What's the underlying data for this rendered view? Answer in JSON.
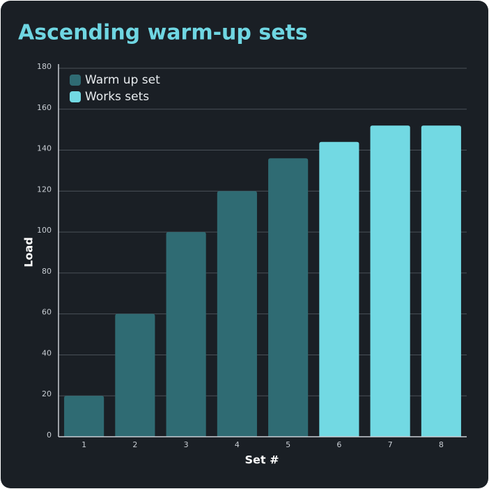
{
  "chart_data": {
    "type": "bar",
    "title": "Ascending warm-up sets",
    "x_label": "Set #",
    "y_label": "Load",
    "categories": [
      "1",
      "2",
      "3",
      "4",
      "5",
      "6",
      "7",
      "8"
    ],
    "series": [
      {
        "name": "Warm up set",
        "color": "#2f6b73",
        "values": [
          20,
          60,
          100,
          120,
          136,
          null,
          null,
          null
        ]
      },
      {
        "name": "Works sets",
        "color": "#72d9e3",
        "values": [
          null,
          null,
          null,
          null,
          null,
          144,
          152,
          152
        ]
      }
    ],
    "ylim": [
      0,
      180
    ],
    "yticks": [
      0,
      20,
      40,
      60,
      80,
      100,
      120,
      140,
      160,
      180
    ],
    "grid": true,
    "legend": "top-left"
  }
}
